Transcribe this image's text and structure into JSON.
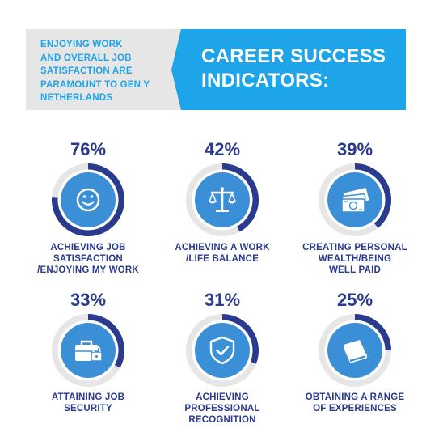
{
  "intro": {
    "lines": [
      "ENJOYING WORK",
      "AND OVERALL JOB",
      "SATISFACTION ARE",
      "PARAMOUNT TO GEN Y",
      "NETHERLANDS"
    ]
  },
  "banner": {
    "lines": [
      "CAREER SUCCESS",
      "INDICATORS:"
    ]
  },
  "colors": {
    "navy": "#2a3a8c",
    "blue": "#1ea4e8",
    "grey": "#e6e6e7",
    "icon_circle": "#3b8fd6"
  },
  "indicators": [
    {
      "percent_label": "76%",
      "icon": "smiley-icon",
      "label_lines": [
        "ACHIEVING JOB",
        "SATISFACTION",
        "/ENJOYING MY WORK"
      ]
    },
    {
      "percent_label": "42%",
      "icon": "balance-scale-icon",
      "label_lines": [
        "ACHIEVING A WORK",
        "/LIFE BALANCE"
      ]
    },
    {
      "percent_label": "39%",
      "icon": "money-icon",
      "label_lines": [
        "CREATING PERSONAL",
        "WEALTH/BEING",
        "WELL PAID"
      ]
    },
    {
      "percent_label": "33%",
      "icon": "briefcase-lock-icon",
      "label_lines": [
        "ATTAINING JOB",
        "SECURITY"
      ]
    },
    {
      "percent_label": "31%",
      "icon": "shield-check-icon",
      "label_lines": [
        "ACHIEVING",
        "PROFESSIONAL",
        "RECOGNITION"
      ]
    },
    {
      "percent_label": "25%",
      "icon": "book-icon",
      "label_lines": [
        "OBTAINING A RANGE",
        "OF EXPERIENCES"
      ]
    }
  ],
  "chart_data": {
    "type": "pie",
    "categories": [
      "ACHIEVING JOB SATISFACTION /ENJOYING MY WORK",
      "ACHIEVING A WORK /LIFE BALANCE",
      "CREATING PERSONAL WEALTH/BEING WELL PAID",
      "ATTAINING JOB SECURITY",
      "ACHIEVING PROFESSIONAL RECOGNITION",
      "OBTAINING A RANGE OF EXPERIENCES"
    ],
    "values": [
      76,
      42,
      39,
      33,
      31,
      25
    ],
    "unit": "%"
  }
}
